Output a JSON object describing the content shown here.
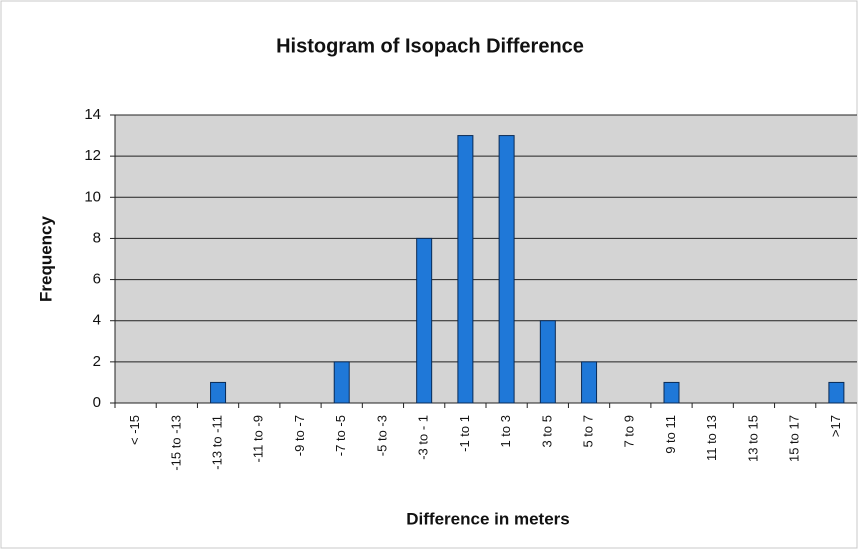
{
  "chart_data": {
    "type": "bar",
    "title": "Histogram of Isopach Difference",
    "x_label": "Difference in meters",
    "y_label": "Frequency",
    "categories": [
      "< -15",
      "-15 to -13",
      "-13 to -11",
      "-11 to -9",
      "-9 to -7",
      "-7 to -5",
      "-5 to -3",
      "-3 to - 1",
      "-1 to 1",
      "1 to 3",
      "3 to 5",
      "5 to 7",
      "7 to 9",
      "9 to 11",
      "11 to 13",
      "13 to 15",
      "15 to 17",
      ">17"
    ],
    "values": [
      0,
      0,
      1,
      0,
      0,
      2,
      0,
      8,
      13,
      13,
      4,
      2,
      0,
      1,
      0,
      0,
      0,
      1
    ],
    "color": "#1f78d8",
    "ylim": [
      0,
      14
    ],
    "yticks": [
      0,
      2,
      4,
      6,
      8,
      10,
      12,
      14
    ],
    "grid": true
  }
}
